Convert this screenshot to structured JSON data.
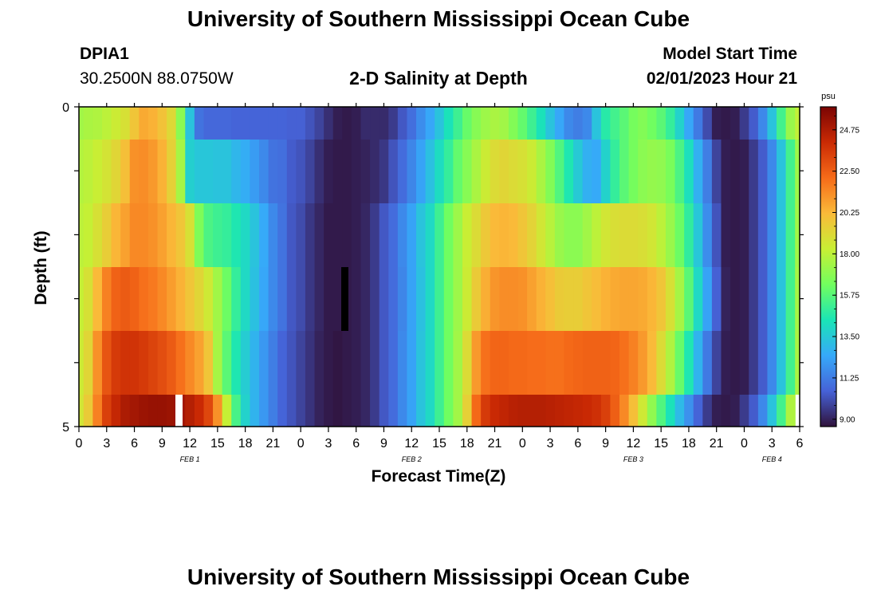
{
  "page": {
    "title": "University of Southern Mississippi Ocean Cube",
    "station_id": "DPIA1",
    "coords": "30.2500N  88.0750W",
    "plot_title": "2-D Salinity at Depth",
    "model_start_label": "Model Start Time",
    "model_start_value": "02/01/2023 Hour 21",
    "bottom_title": "University of Southern Mississippi Ocean Cube"
  },
  "colors": {
    "colormap": [
      "#30123b",
      "#4662d7",
      "#36a9f9",
      "#1ae5b6",
      "#72fe5e",
      "#c8ef34",
      "#faba39",
      "#f66b19",
      "#ca2a04",
      "#7a0403"
    ]
  },
  "chart_data": {
    "type": "heatmap",
    "xlabel": "Forecast Time(Z)",
    "ylabel": "Depth (ft)",
    "x_tick_labels": [
      "0",
      "3",
      "6",
      "9",
      "12",
      "15",
      "18",
      "21",
      "0",
      "3",
      "6",
      "9",
      "12",
      "15",
      "18",
      "21",
      "0",
      "3",
      "6",
      "9",
      "12",
      "15",
      "18",
      "21",
      "0",
      "3",
      "6"
    ],
    "date_labels": [
      {
        "label": "FEB 1",
        "tick_index": 4
      },
      {
        "label": "FEB 2",
        "tick_index": 12
      },
      {
        "label": "FEB 3",
        "tick_index": 20
      },
      {
        "label": "FEB 4",
        "tick_index": 25
      }
    ],
    "y_tick_labels": [
      "0",
      "5"
    ],
    "ylim": [
      0,
      5
    ],
    "colorbar": {
      "unit": "psu",
      "ticks": [
        "24.75",
        "22.50",
        "20.25",
        "18.00",
        "15.75",
        "13.50",
        "11.25",
        "9.00"
      ],
      "range": [
        8.6,
        26.0
      ]
    },
    "x_hours": [
      0,
      1,
      2,
      3,
      4,
      5,
      6,
      7,
      8,
      9,
      10,
      11,
      12,
      13,
      14,
      15,
      16,
      17,
      18,
      19,
      20,
      21,
      22,
      23,
      24,
      25,
      26,
      27,
      28,
      29,
      30,
      31,
      32,
      33,
      34,
      35,
      36,
      37,
      38,
      39,
      40,
      41,
      42,
      43,
      44,
      45,
      46,
      47,
      48,
      49,
      50,
      51,
      52,
      53,
      54,
      55,
      56,
      57,
      58,
      59,
      60,
      61,
      62,
      63,
      64,
      65,
      66,
      67,
      68,
      69,
      70,
      71,
      72,
      73,
      74,
      75,
      76,
      77,
      78
    ],
    "depth_rows": [
      "0-0.5",
      "0.5-1.5",
      "1.5-2.5",
      "2.5-3.5",
      "3.5-4.5",
      "4.5-5"
    ],
    "salinity": [
      [
        17.4,
        17.6,
        17.7,
        18.0,
        18.4,
        18.8,
        19.8,
        20.6,
        20.4,
        19.9,
        19.1,
        16.9,
        13.3,
        11.0,
        10.7,
        10.7,
        10.7,
        10.6,
        10.6,
        10.6,
        10.6,
        10.6,
        10.6,
        10.5,
        10.5,
        10.2,
        9.8,
        9.3,
        8.9,
        8.8,
        8.9,
        9.2,
        9.2,
        9.2,
        9.6,
        10.3,
        10.9,
        11.7,
        12.4,
        13.3,
        14.3,
        15.2,
        16.1,
        16.8,
        17.3,
        17.6,
        17.4,
        16.7,
        16.0,
        15.2,
        14.3,
        13.3,
        12.4,
        11.6,
        11.3,
        11.6,
        13.3,
        14.7,
        15.3,
        15.8,
        16.4,
        16.7,
        16.3,
        15.8,
        15.0,
        13.8,
        12.4,
        11.2,
        10.0,
        8.9,
        8.8,
        8.9,
        9.6,
        10.4,
        11.6,
        13.3,
        15.3,
        17.2,
        18.1
      ],
      [
        17.8,
        18.0,
        18.3,
        18.7,
        19.2,
        20.0,
        21.2,
        21.3,
        21.0,
        20.4,
        19.4,
        17.5,
        13.7,
        13.4,
        13.4,
        13.3,
        13.3,
        12.9,
        12.6,
        12.1,
        11.6,
        11.0,
        10.9,
        10.4,
        10.2,
        9.8,
        9.3,
        8.9,
        8.8,
        8.8,
        8.9,
        9.0,
        9.2,
        9.5,
        10.2,
        10.8,
        11.5,
        12.3,
        13.2,
        14.1,
        15.0,
        16.0,
        16.8,
        17.6,
        18.4,
        19.0,
        19.2,
        19.0,
        18.8,
        18.4,
        17.6,
        16.7,
        15.6,
        14.5,
        13.5,
        12.7,
        12.5,
        13.8,
        15.0,
        15.8,
        16.4,
        16.9,
        17.1,
        17.0,
        16.5,
        15.5,
        14.2,
        12.7,
        11.3,
        9.8,
        8.9,
        8.8,
        8.9,
        9.6,
        10.4,
        11.6,
        13.3,
        15.3,
        17.3
      ],
      [
        18.0,
        18.2,
        18.8,
        19.5,
        20.3,
        20.8,
        21.4,
        21.4,
        21.2,
        20.8,
        20.3,
        19.8,
        18.8,
        16.6,
        15.5,
        15.2,
        15.0,
        14.5,
        14.0,
        13.3,
        12.5,
        11.6,
        11.0,
        10.3,
        10.0,
        9.5,
        9.1,
        8.8,
        8.8,
        8.8,
        8.9,
        9.1,
        9.6,
        10.3,
        10.8,
        11.6,
        12.3,
        13.3,
        14.0,
        15.2,
        16.3,
        17.3,
        18.3,
        19.0,
        19.7,
        20.2,
        20.3,
        20.2,
        19.8,
        19.3,
        18.6,
        17.9,
        17.2,
        16.9,
        16.9,
        17.4,
        18.0,
        18.6,
        18.9,
        19.0,
        19.0,
        18.9,
        18.6,
        18.0,
        17.2,
        16.2,
        14.9,
        13.4,
        11.7,
        10.2,
        8.9,
        8.8,
        8.9,
        9.6,
        10.4,
        11.6,
        13.3,
        15.3,
        17.4
      ],
      [
        18.2,
        18.8,
        20.2,
        21.6,
        22.4,
        22.6,
        22.4,
        22.0,
        21.8,
        21.4,
        20.9,
        20.4,
        19.8,
        19.2,
        18.5,
        17.4,
        16.2,
        15.0,
        14.0,
        13.2,
        12.4,
        11.6,
        11.0,
        10.3,
        10.0,
        9.5,
        9.1,
        8.8,
        8.8,
        8.8,
        8.9,
        9.1,
        9.6,
        10.3,
        10.8,
        11.5,
        12.3,
        13.2,
        14.0,
        15.2,
        16.3,
        17.3,
        18.4,
        19.6,
        20.5,
        21.1,
        21.3,
        21.3,
        21.2,
        20.8,
        20.4,
        20.0,
        19.6,
        19.5,
        19.5,
        19.8,
        20.1,
        20.4,
        20.6,
        20.7,
        20.7,
        20.6,
        20.3,
        19.8,
        18.8,
        17.5,
        15.8,
        14.0,
        12.3,
        10.5,
        9.0,
        8.8,
        8.9,
        9.6,
        10.4,
        11.6,
        13.3,
        15.3,
        17.5
      ],
      [
        18.4,
        19.2,
        21.2,
        22.8,
        23.6,
        23.8,
        23.8,
        23.6,
        23.3,
        23.0,
        22.6,
        22.0,
        21.4,
        20.8,
        19.8,
        17.5,
        15.8,
        14.5,
        13.6,
        12.8,
        12.0,
        11.3,
        10.6,
        10.2,
        9.8,
        9.4,
        9.0,
        8.8,
        8.7,
        8.8,
        8.9,
        9.1,
        9.6,
        10.3,
        10.8,
        11.6,
        12.3,
        13.3,
        14.0,
        15.2,
        16.3,
        17.4,
        19.0,
        21.0,
        22.0,
        22.3,
        22.3,
        22.2,
        22.2,
        22.1,
        22.1,
        22.0,
        22.0,
        22.2,
        22.3,
        22.4,
        22.4,
        22.4,
        22.3,
        22.0,
        21.6,
        21.0,
        20.2,
        19.0,
        17.7,
        16.1,
        14.5,
        12.8,
        11.2,
        9.8,
        8.9,
        8.8,
        8.9,
        9.6,
        10.4,
        11.6,
        13.3,
        15.3,
        17.6
      ],
      [
        18.6,
        19.6,
        21.6,
        23.4,
        24.2,
        24.8,
        25.0,
        25.2,
        25.3,
        25.3,
        25.2,
        25.0,
        24.6,
        24.1,
        23.2,
        21.2,
        18.2,
        15.4,
        13.8,
        12.8,
        12.0,
        11.3,
        10.6,
        10.2,
        9.8,
        9.4,
        9.0,
        8.8,
        8.7,
        8.8,
        8.9,
        9.1,
        9.6,
        10.3,
        10.8,
        11.6,
        12.3,
        13.3,
        14.0,
        15.2,
        16.3,
        17.4,
        19.4,
        22.2,
        23.6,
        24.1,
        24.3,
        24.5,
        24.6,
        24.6,
        24.6,
        24.5,
        24.4,
        24.3,
        24.2,
        24.1,
        23.9,
        23.4,
        22.5,
        21.4,
        20.0,
        18.5,
        17.0,
        15.6,
        14.3,
        13.0,
        11.8,
        10.6,
        9.6,
        8.9,
        8.8,
        8.9,
        9.6,
        10.4,
        11.6,
        13.3,
        15.3,
        17.7
      ]
    ]
  }
}
